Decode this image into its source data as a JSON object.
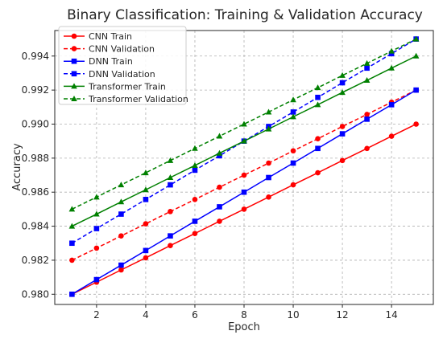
{
  "chart_data": {
    "type": "line",
    "title": "Binary Classification: Training & Validation Accuracy",
    "xlabel": "Epoch",
    "ylabel": "Accuracy",
    "xlim": [
      0.3,
      15.7
    ],
    "ylim": [
      0.9794,
      0.9955
    ],
    "xticks": [
      2,
      4,
      6,
      8,
      10,
      12,
      14
    ],
    "yticks": [
      0.98,
      0.982,
      0.984,
      0.986,
      0.988,
      0.99,
      0.992,
      0.994
    ],
    "ytick_format_decimals": 3,
    "grid": true,
    "legend_position": "top-left",
    "x": [
      1,
      2,
      3,
      4,
      5,
      6,
      7,
      8,
      9,
      10,
      11,
      12,
      13,
      14,
      15
    ],
    "series": [
      {
        "name": "CNN Train",
        "color": "#ff0000",
        "marker": "circle",
        "dashed": false,
        "values": [
          0.98,
          0.98071,
          0.98143,
          0.98214,
          0.98286,
          0.98357,
          0.98429,
          0.985,
          0.98571,
          0.98643,
          0.98714,
          0.98786,
          0.98857,
          0.98929,
          0.99
        ]
      },
      {
        "name": "CNN Validation",
        "color": "#ff0000",
        "marker": "circle",
        "dashed": true,
        "values": [
          0.982,
          0.98271,
          0.98343,
          0.98414,
          0.98486,
          0.98557,
          0.98629,
          0.987,
          0.98771,
          0.98843,
          0.98914,
          0.98986,
          0.99057,
          0.99129,
          0.992
        ]
      },
      {
        "name": "DNN Train",
        "color": "#0000ff",
        "marker": "square",
        "dashed": false,
        "values": [
          0.98,
          0.98086,
          0.98171,
          0.98257,
          0.98343,
          0.98429,
          0.98514,
          0.986,
          0.98686,
          0.98771,
          0.98857,
          0.98943,
          0.99029,
          0.99114,
          0.992
        ]
      },
      {
        "name": "DNN Validation",
        "color": "#0000ff",
        "marker": "square",
        "dashed": true,
        "values": [
          0.983,
          0.98386,
          0.98471,
          0.98557,
          0.98643,
          0.98729,
          0.98814,
          0.989,
          0.98986,
          0.99071,
          0.99157,
          0.99243,
          0.99329,
          0.99414,
          0.995
        ]
      },
      {
        "name": "Transformer Train",
        "color": "#008000",
        "marker": "triangle",
        "dashed": false,
        "values": [
          0.984,
          0.98471,
          0.98543,
          0.98614,
          0.98686,
          0.98757,
          0.98829,
          0.989,
          0.98971,
          0.99043,
          0.99114,
          0.99186,
          0.99257,
          0.99329,
          0.994
        ]
      },
      {
        "name": "Transformer Validation",
        "color": "#008000",
        "marker": "triangle",
        "dashed": true,
        "values": [
          0.985,
          0.98571,
          0.98643,
          0.98714,
          0.98786,
          0.98857,
          0.98929,
          0.99,
          0.99071,
          0.99143,
          0.99214,
          0.99286,
          0.99357,
          0.99429,
          0.995
        ]
      }
    ]
  }
}
